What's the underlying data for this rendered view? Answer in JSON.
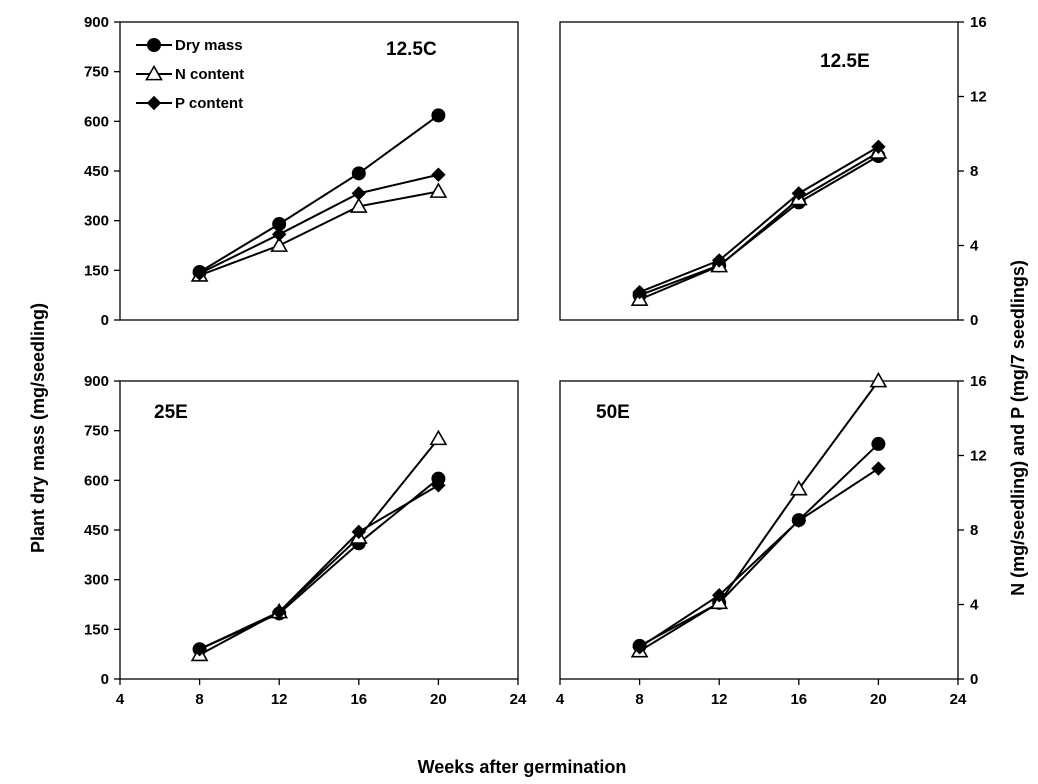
{
  "figure": {
    "ylabel_left": "Plant dry mass (mg/seedling)",
    "ylabel_right": "N (mg/seedling) and P (mg/7 seedlings)",
    "xlabel": "Weeks after germination"
  },
  "legend": {
    "placement": "top-left of first panel",
    "items": [
      "Dry mass",
      "N content",
      "P content"
    ]
  },
  "chart_data": [
    {
      "type": "line",
      "title": "12.5C",
      "x": [
        8,
        12,
        16,
        20
      ],
      "xlim": [
        4,
        24
      ],
      "xticks": [
        4,
        8,
        12,
        16,
        20,
        24
      ],
      "ylim_left": [
        0,
        900
      ],
      "yticks_left": [
        0,
        150,
        300,
        450,
        600,
        750,
        900
      ],
      "ylim_right": [
        0,
        16
      ],
      "yticks_right": [
        0,
        4,
        8,
        12,
        16
      ],
      "series": [
        {
          "name": "Dry mass",
          "axis": "left",
          "marker": "circle",
          "values": [
            145,
            290,
            443,
            618
          ]
        },
        {
          "name": "N content",
          "axis": "right",
          "marker": "triangle-open",
          "values": [
            2.4,
            4.0,
            6.1,
            6.9
          ]
        },
        {
          "name": "P content",
          "axis": "right",
          "marker": "diamond",
          "values": [
            2.5,
            4.6,
            6.8,
            7.8
          ]
        }
      ]
    },
    {
      "type": "line",
      "title": "12.5E",
      "x": [
        8,
        12,
        16,
        20
      ],
      "xlim": [
        4,
        24
      ],
      "xticks": [
        4,
        8,
        12,
        16,
        20,
        24
      ],
      "ylim_left": [
        0,
        900
      ],
      "yticks_left": [
        0,
        150,
        300,
        450,
        600,
        750,
        900
      ],
      "ylim_right": [
        0,
        16
      ],
      "yticks_right": [
        0,
        4,
        8,
        12,
        16
      ],
      "series": [
        {
          "name": "Dry mass",
          "axis": "left",
          "marker": "circle",
          "values": [
            75,
            165,
            355,
            495
          ]
        },
        {
          "name": "N content",
          "axis": "right",
          "marker": "triangle-open",
          "values": [
            1.1,
            2.9,
            6.5,
            9.0
          ]
        },
        {
          "name": "P content",
          "axis": "right",
          "marker": "diamond",
          "values": [
            1.5,
            3.2,
            6.8,
            9.3
          ]
        }
      ]
    },
    {
      "type": "line",
      "title": "25E",
      "x": [
        8,
        12,
        16,
        20
      ],
      "xlim": [
        4,
        24
      ],
      "xticks": [
        4,
        8,
        12,
        16,
        20,
        24
      ],
      "ylim_left": [
        0,
        900
      ],
      "yticks_left": [
        0,
        150,
        300,
        450,
        600,
        750,
        900
      ],
      "ylim_right": [
        0,
        16
      ],
      "yticks_right": [
        0,
        4,
        8,
        12,
        16
      ],
      "series": [
        {
          "name": "Dry mass",
          "axis": "left",
          "marker": "circle",
          "values": [
            90,
            198,
            410,
            605
          ]
        },
        {
          "name": "N content",
          "axis": "right",
          "marker": "triangle-open",
          "values": [
            1.3,
            3.6,
            7.6,
            12.9
          ]
        },
        {
          "name": "P content",
          "axis": "right",
          "marker": "diamond",
          "values": [
            1.6,
            3.6,
            7.9,
            10.4
          ]
        }
      ]
    },
    {
      "type": "line",
      "title": "50E",
      "x": [
        8,
        12,
        16,
        20
      ],
      "xlim": [
        4,
        24
      ],
      "xticks": [
        4,
        8,
        12,
        16,
        20,
        24
      ],
      "ylim_left": [
        0,
        900
      ],
      "yticks_left": [
        0,
        150,
        300,
        450,
        600,
        750,
        900
      ],
      "ylim_right": [
        0,
        16
      ],
      "yticks_right": [
        0,
        4,
        8,
        12,
        16
      ],
      "series": [
        {
          "name": "Dry mass",
          "axis": "left",
          "marker": "circle",
          "values": [
            100,
            230,
            480,
            710
          ]
        },
        {
          "name": "N content",
          "axis": "right",
          "marker": "triangle-open",
          "values": [
            1.5,
            4.1,
            10.2,
            16.0
          ]
        },
        {
          "name": "P content",
          "axis": "right",
          "marker": "diamond",
          "values": [
            1.7,
            4.5,
            8.5,
            11.3
          ]
        }
      ]
    }
  ]
}
